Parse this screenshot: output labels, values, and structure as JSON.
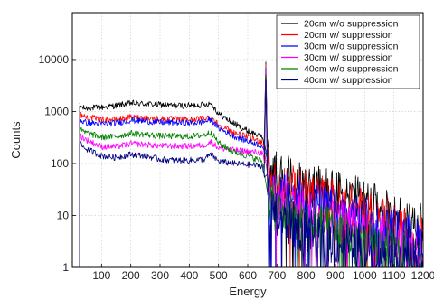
{
  "chart_data": {
    "type": "line",
    "xlabel": "Energy",
    "ylabel": "Counts",
    "xlim": [
      0,
      1200
    ],
    "ylim": [
      1,
      80000
    ],
    "yscale": "log",
    "xticks": [
      100,
      200,
      300,
      400,
      500,
      600,
      700,
      800,
      900,
      1000,
      1100,
      1200
    ],
    "yticks": [
      1,
      10,
      100,
      1000,
      10000
    ],
    "grid": true,
    "legend_position": "top-right",
    "peak_energy": 662,
    "series": [
      {
        "name": "20cm w/o suppression",
        "color": "#000000",
        "points": [
          [
            25,
            1300
          ],
          [
            40,
            1150
          ],
          [
            100,
            1200
          ],
          [
            150,
            1300
          ],
          [
            200,
            1450
          ],
          [
            250,
            1400
          ],
          [
            300,
            1350
          ],
          [
            350,
            1300
          ],
          [
            400,
            1300
          ],
          [
            450,
            1350
          ],
          [
            475,
            1450
          ],
          [
            500,
            900
          ],
          [
            550,
            600
          ],
          [
            600,
            420
          ],
          [
            650,
            330
          ],
          [
            662,
            9000
          ],
          [
            675,
            90
          ],
          [
            700,
            60
          ],
          [
            800,
            40
          ],
          [
            900,
            28
          ],
          [
            1000,
            18
          ],
          [
            1100,
            10
          ],
          [
            1200,
            6
          ]
        ]
      },
      {
        "name": "20cm w/ suppression",
        "color": "#ff0000",
        "points": [
          [
            25,
            900
          ],
          [
            40,
            800
          ],
          [
            100,
            700
          ],
          [
            150,
            700
          ],
          [
            200,
            780
          ],
          [
            250,
            750
          ],
          [
            300,
            720
          ],
          [
            350,
            710
          ],
          [
            400,
            700
          ],
          [
            450,
            740
          ],
          [
            475,
            800
          ],
          [
            500,
            550
          ],
          [
            550,
            400
          ],
          [
            600,
            320
          ],
          [
            650,
            260
          ],
          [
            662,
            8000
          ],
          [
            675,
            60
          ],
          [
            700,
            40
          ],
          [
            800,
            28
          ],
          [
            900,
            18
          ],
          [
            1000,
            12
          ],
          [
            1100,
            7
          ],
          [
            1200,
            4
          ]
        ]
      },
      {
        "name": "30cm w/o suppression",
        "color": "#0000ff",
        "points": [
          [
            25,
            700
          ],
          [
            40,
            620
          ],
          [
            100,
            580
          ],
          [
            150,
            600
          ],
          [
            200,
            680
          ],
          [
            250,
            650
          ],
          [
            300,
            620
          ],
          [
            350,
            610
          ],
          [
            400,
            600
          ],
          [
            450,
            630
          ],
          [
            475,
            700
          ],
          [
            500,
            480
          ],
          [
            550,
            340
          ],
          [
            600,
            270
          ],
          [
            650,
            220
          ],
          [
            662,
            7000
          ],
          [
            675,
            45
          ],
          [
            700,
            28
          ],
          [
            800,
            18
          ],
          [
            900,
            12
          ],
          [
            1000,
            8
          ],
          [
            1100,
            5
          ],
          [
            1200,
            3
          ]
        ]
      },
      {
        "name": "30cm w/ suppression",
        "color": "#ff00ff",
        "points": [
          [
            25,
            350
          ],
          [
            40,
            300
          ],
          [
            100,
            210
          ],
          [
            150,
            210
          ],
          [
            200,
            240
          ],
          [
            250,
            230
          ],
          [
            300,
            220
          ],
          [
            350,
            215
          ],
          [
            400,
            215
          ],
          [
            450,
            225
          ],
          [
            475,
            260
          ],
          [
            500,
            200
          ],
          [
            550,
            180
          ],
          [
            600,
            170
          ],
          [
            650,
            160
          ],
          [
            662,
            6000
          ],
          [
            675,
            30
          ],
          [
            700,
            20
          ],
          [
            800,
            12
          ],
          [
            900,
            8
          ],
          [
            1000,
            5
          ],
          [
            1100,
            3
          ],
          [
            1200,
            2
          ]
        ]
      },
      {
        "name": "40cm w/o suppression",
        "color": "#008000",
        "points": [
          [
            25,
            450
          ],
          [
            40,
            400
          ],
          [
            100,
            320
          ],
          [
            150,
            330
          ],
          [
            200,
            380
          ],
          [
            250,
            360
          ],
          [
            300,
            340
          ],
          [
            350,
            335
          ],
          [
            400,
            330
          ],
          [
            450,
            350
          ],
          [
            475,
            400
          ],
          [
            500,
            250
          ],
          [
            550,
            170
          ],
          [
            600,
            140
          ],
          [
            650,
            110
          ],
          [
            662,
            5000
          ],
          [
            675,
            20
          ],
          [
            700,
            12
          ],
          [
            800,
            7
          ],
          [
            900,
            5
          ],
          [
            1000,
            3
          ],
          [
            1100,
            2
          ],
          [
            1200,
            1.5
          ]
        ]
      },
      {
        "name": "40cm w/ suppression",
        "color": "#00007f",
        "points": [
          [
            25,
            250
          ],
          [
            40,
            200
          ],
          [
            100,
            140
          ],
          [
            150,
            130
          ],
          [
            200,
            150
          ],
          [
            250,
            140
          ],
          [
            300,
            120
          ],
          [
            350,
            115
          ],
          [
            400,
            115
          ],
          [
            450,
            120
          ],
          [
            475,
            150
          ],
          [
            500,
            110
          ],
          [
            550,
            100
          ],
          [
            600,
            95
          ],
          [
            650,
            90
          ],
          [
            662,
            4000
          ],
          [
            675,
            15
          ],
          [
            700,
            9
          ],
          [
            800,
            5
          ],
          [
            900,
            3
          ],
          [
            1000,
            2.5
          ],
          [
            1100,
            2
          ],
          [
            1200,
            1.2
          ]
        ]
      }
    ]
  }
}
